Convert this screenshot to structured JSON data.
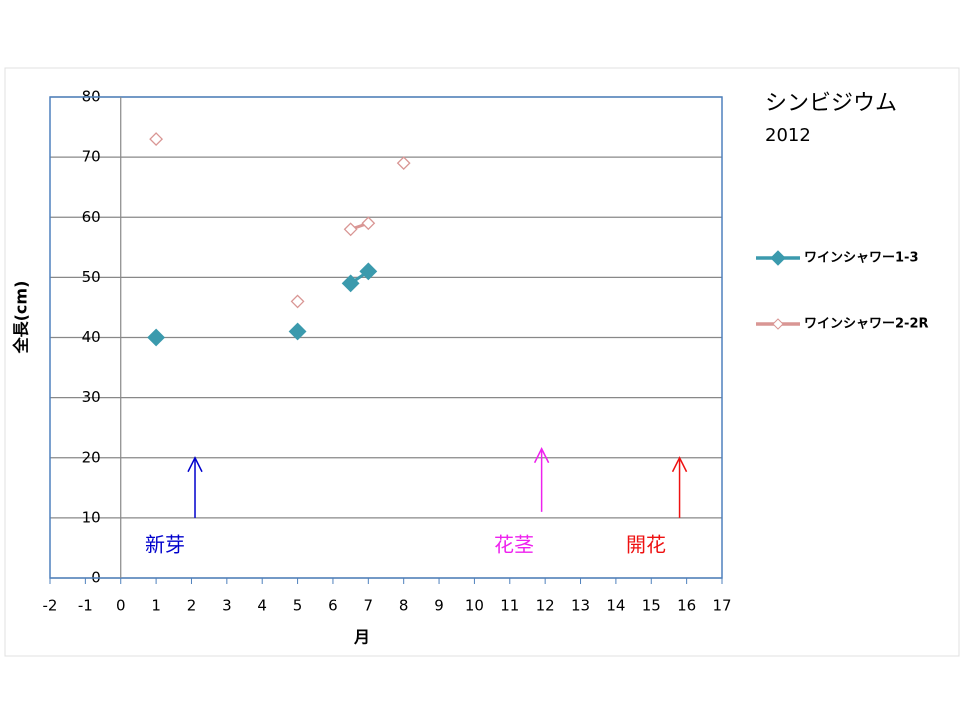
{
  "chart_data": {
    "type": "scatter-line",
    "title": "シンビジウム",
    "subtitle": "2012",
    "x_label": "月",
    "y_label": "全長(cm)",
    "x": [
      1,
      3,
      5,
      6,
      6.5,
      7,
      7.5,
      8
    ],
    "series": [
      {
        "name": "ワインシャワー1-3",
        "color": "#3b9aad",
        "marker": "filled-diamond",
        "values": [
          40,
          null,
          41,
          null,
          49,
          51,
          null,
          null
        ]
      },
      {
        "name": "ワインシャワー2-2R",
        "color": "#d99694",
        "marker": "open-diamond",
        "values": [
          73,
          null,
          46,
          null,
          58,
          59,
          null,
          69
        ]
      }
    ],
    "xlim": [
      -2,
      17
    ],
    "xticks": [
      -2,
      -1,
      0,
      1,
      2,
      3,
      4,
      5,
      6,
      7,
      8,
      9,
      10,
      11,
      12,
      13,
      14,
      15,
      16,
      17
    ],
    "ylim": [
      0,
      80
    ],
    "yticks": [
      0,
      10,
      20,
      30,
      40,
      50,
      60,
      70,
      80
    ],
    "grid": true,
    "legend": "right",
    "annotations": [
      {
        "text": "新芽",
        "color": "#0000cc"
      },
      {
        "text": "花茎",
        "color": "#ee22ee"
      },
      {
        "text": "開花",
        "color": "#ee1111"
      }
    ]
  }
}
